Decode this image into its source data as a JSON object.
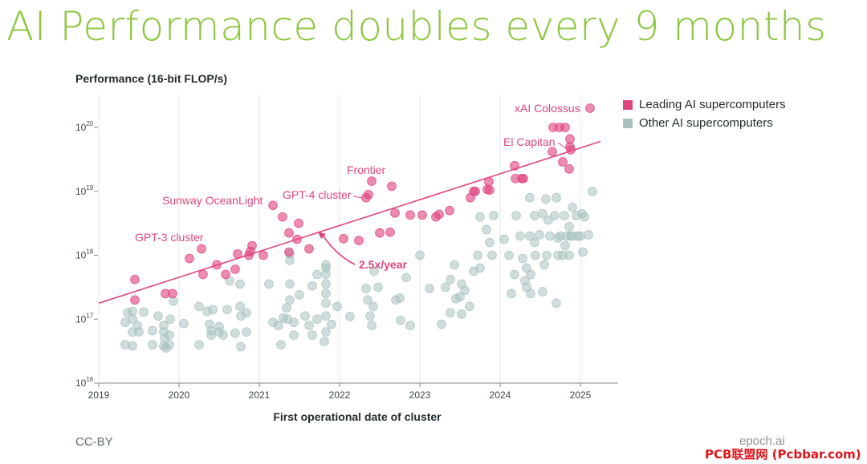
{
  "header": {
    "title": "AI Performance doubles every 9 months"
  },
  "footer": {
    "license": "CC-BY",
    "brand": "epoch.ai"
  },
  "watermark": "PCB联盟网 (Pcbbar.com)",
  "colors": {
    "title": "#8dc63f",
    "leading": "#e0457f",
    "other": "#a8c2c0",
    "trend": "#e0457f"
  },
  "chart_data": {
    "type": "scatter",
    "title": "AI Performance doubles every 9 months",
    "ylabel": "Performance (16-bit FLOP/s)",
    "xlabel": "First operational date of cluster",
    "y_scale": "log",
    "xlim": [
      2019.0,
      2025.45
    ],
    "ylim_exp": [
      16,
      20.55
    ],
    "x_ticks": [
      "2019",
      "2020",
      "2021",
      "2022",
      "2023",
      "2024",
      "2025"
    ],
    "y_ticks": [
      {
        "exp": 16,
        "base": "10",
        "sup": "16"
      },
      {
        "exp": 17,
        "base": "10",
        "sup": "17"
      },
      {
        "exp": 18,
        "base": "10",
        "sup": "18"
      },
      {
        "exp": 19,
        "base": "10",
        "sup": "19"
      },
      {
        "exp": 20,
        "base": "10",
        "sup": "20"
      }
    ],
    "legend": [
      {
        "name": "Leading AI supercomputers",
        "color": "#e0457f"
      },
      {
        "name": "Other AI supercomputers",
        "color": "#a8c2c0"
      }
    ],
    "trend": {
      "label": "2.5x/year",
      "x_start": 2019.0,
      "log_y_start": 17.25,
      "x_end": 2025.25,
      "log_y_end": 19.78
    },
    "annotations": [
      {
        "text": "GPT-3 cluster",
        "x": 2020.1,
        "log_y": 18.3
      },
      {
        "text": "Sunway OceanLight",
        "x": 2021.1,
        "log_y": 19.1
      },
      {
        "text": "GPT-4 cluster",
        "x": 2022.2,
        "log_y": 19.2
      },
      {
        "text": "Frontier",
        "x": 2022.35,
        "log_y": 19.35
      },
      {
        "text": "El Capitan",
        "x": 2024.6,
        "log_y": 19.75
      },
      {
        "text": "xAI Colossus",
        "x": 2024.9,
        "log_y": 20.3
      }
    ],
    "series": [
      {
        "name": "Leading AI supercomputers",
        "color": "#e0457f",
        "points": [
          [
            2019.45,
            17.3
          ],
          [
            2019.45,
            17.62
          ],
          [
            2019.83,
            17.4
          ],
          [
            2019.92,
            17.4
          ],
          [
            2020.13,
            17.95
          ],
          [
            2020.28,
            18.1
          ],
          [
            2020.3,
            17.7
          ],
          [
            2020.47,
            17.85
          ],
          [
            2020.58,
            17.7
          ],
          [
            2020.7,
            17.78
          ],
          [
            2020.73,
            18.02
          ],
          [
            2020.87,
            18.0
          ],
          [
            2020.89,
            18.06
          ],
          [
            2020.91,
            18.15
          ],
          [
            2021.05,
            18.0
          ],
          [
            2021.17,
            18.78
          ],
          [
            2021.29,
            18.6
          ],
          [
            2021.37,
            18.05
          ],
          [
            2021.37,
            18.35
          ],
          [
            2021.47,
            18.25
          ],
          [
            2021.49,
            18.5
          ],
          [
            2021.62,
            18.1
          ],
          [
            2022.05,
            18.26
          ],
          [
            2022.24,
            18.23
          ],
          [
            2022.33,
            18.9
          ],
          [
            2022.36,
            18.95
          ],
          [
            2022.4,
            19.16
          ],
          [
            2022.5,
            18.35
          ],
          [
            2022.63,
            18.36
          ],
          [
            2022.65,
            19.08
          ],
          [
            2022.69,
            18.66
          ],
          [
            2022.88,
            18.63
          ],
          [
            2023.03,
            18.63
          ],
          [
            2023.2,
            18.6
          ],
          [
            2023.24,
            18.64
          ],
          [
            2023.37,
            18.7
          ],
          [
            2023.63,
            18.9
          ],
          [
            2023.67,
            19.0
          ],
          [
            2023.69,
            19.0
          ],
          [
            2023.84,
            19.03
          ],
          [
            2023.86,
            19.15
          ],
          [
            2023.87,
            19.02
          ],
          [
            2024.18,
            19.4
          ],
          [
            2024.19,
            19.2
          ],
          [
            2024.27,
            19.2
          ],
          [
            2024.29,
            19.2
          ],
          [
            2024.65,
            19.62
          ],
          [
            2024.66,
            20.0
          ],
          [
            2024.74,
            20.0
          ],
          [
            2024.78,
            19.46
          ],
          [
            2024.81,
            20.0
          ],
          [
            2024.86,
            19.35
          ],
          [
            2024.87,
            19.7
          ],
          [
            2024.87,
            19.82
          ],
          [
            2024.88,
            19.65
          ],
          [
            2025.12,
            20.3
          ]
        ]
      },
      {
        "name": "Other AI supercomputers",
        "color": "#a8c2c0",
        "points": [
          [
            2019.33,
            16.6
          ],
          [
            2019.33,
            16.95
          ],
          [
            2019.36,
            17.1
          ],
          [
            2019.42,
            16.58
          ],
          [
            2019.42,
            16.8
          ],
          [
            2019.42,
            17.0
          ],
          [
            2019.42,
            17.12
          ],
          [
            2019.48,
            16.9
          ],
          [
            2019.5,
            16.8
          ],
          [
            2019.56,
            17.11
          ],
          [
            2019.67,
            16.82
          ],
          [
            2019.67,
            16.6
          ],
          [
            2019.74,
            17.05
          ],
          [
            2019.81,
            16.58
          ],
          [
            2019.81,
            16.8
          ],
          [
            2019.81,
            16.9
          ],
          [
            2019.82,
            16.7
          ],
          [
            2019.84,
            16.55
          ],
          [
            2019.88,
            16.6
          ],
          [
            2019.88,
            16.75
          ],
          [
            2019.89,
            17.0
          ],
          [
            2019.93,
            17.28
          ],
          [
            2020.06,
            16.93
          ],
          [
            2020.25,
            17.2
          ],
          [
            2020.25,
            16.6
          ],
          [
            2020.35,
            17.12
          ],
          [
            2020.38,
            16.92
          ],
          [
            2020.4,
            16.82
          ],
          [
            2020.4,
            16.75
          ],
          [
            2020.42,
            17.15
          ],
          [
            2020.5,
            16.88
          ],
          [
            2020.5,
            16.8
          ],
          [
            2020.55,
            16.75
          ],
          [
            2020.6,
            17.15
          ],
          [
            2020.63,
            17.6
          ],
          [
            2020.7,
            16.78
          ],
          [
            2020.76,
            17.2
          ],
          [
            2020.77,
            17.05
          ],
          [
            2020.77,
            16.57
          ],
          [
            2020.76,
            17.55
          ],
          [
            2020.84,
            17.1
          ],
          [
            2020.84,
            16.8
          ],
          [
            2021.12,
            17.55
          ],
          [
            2021.17,
            16.95
          ],
          [
            2021.24,
            16.9
          ],
          [
            2021.27,
            16.6
          ],
          [
            2021.3,
            17.02
          ],
          [
            2021.34,
            17.18
          ],
          [
            2021.35,
            17.0
          ],
          [
            2021.38,
            17.3
          ],
          [
            2021.38,
            17.55
          ],
          [
            2021.38,
            17.92
          ],
          [
            2021.38,
            18.02
          ],
          [
            2021.43,
            16.95
          ],
          [
            2021.43,
            16.75
          ],
          [
            2021.5,
            17.38
          ],
          [
            2021.57,
            17.05
          ],
          [
            2021.62,
            16.9
          ],
          [
            2021.66,
            16.75
          ],
          [
            2021.66,
            17.52
          ],
          [
            2021.72,
            17.7
          ],
          [
            2021.72,
            17.0
          ],
          [
            2021.81,
            16.65
          ],
          [
            2021.83,
            16.8
          ],
          [
            2021.83,
            17.05
          ],
          [
            2021.83,
            17.25
          ],
          [
            2021.83,
            17.4
          ],
          [
            2021.83,
            17.55
          ],
          [
            2021.83,
            17.7
          ],
          [
            2021.83,
            17.8
          ],
          [
            2021.83,
            17.85
          ],
          [
            2021.9,
            16.92
          ],
          [
            2021.97,
            17.2
          ],
          [
            2022.13,
            17.04
          ],
          [
            2022.33,
            17.48
          ],
          [
            2022.35,
            17.3
          ],
          [
            2022.38,
            17.05
          ],
          [
            2022.4,
            16.9
          ],
          [
            2022.42,
            17.2
          ],
          [
            2022.43,
            17.75
          ],
          [
            2022.48,
            17.5
          ],
          [
            2022.7,
            17.3
          ],
          [
            2022.75,
            17.33
          ],
          [
            2022.76,
            16.98
          ],
          [
            2022.83,
            17.65
          ],
          [
            2022.88,
            16.9
          ],
          [
            2023.0,
            18.0
          ],
          [
            2023.12,
            17.48
          ],
          [
            2023.27,
            16.92
          ],
          [
            2023.32,
            17.5
          ],
          [
            2023.38,
            17.62
          ],
          [
            2023.38,
            17.1
          ],
          [
            2023.43,
            17.85
          ],
          [
            2023.45,
            17.32
          ],
          [
            2023.5,
            17.35
          ],
          [
            2023.52,
            17.55
          ],
          [
            2023.52,
            17.08
          ],
          [
            2023.56,
            17.45
          ],
          [
            2023.62,
            17.2
          ],
          [
            2023.67,
            17.75
          ],
          [
            2023.72,
            18.0
          ],
          [
            2023.75,
            18.6
          ],
          [
            2023.75,
            17.8
          ],
          [
            2023.83,
            18.4
          ],
          [
            2023.87,
            18.2
          ],
          [
            2023.9,
            18.0
          ],
          [
            2023.92,
            18.62
          ],
          [
            2024.05,
            18.25
          ],
          [
            2024.11,
            18.0
          ],
          [
            2024.14,
            17.4
          ],
          [
            2024.18,
            17.7
          ],
          [
            2024.2,
            18.62
          ],
          [
            2024.25,
            18.3
          ],
          [
            2024.28,
            17.95
          ],
          [
            2024.31,
            17.6
          ],
          [
            2024.33,
            17.5
          ],
          [
            2024.33,
            17.8
          ],
          [
            2024.37,
            18.3
          ],
          [
            2024.37,
            18.9
          ],
          [
            2024.38,
            17.7
          ],
          [
            2024.38,
            17.4
          ],
          [
            2024.43,
            18.2
          ],
          [
            2024.43,
            18.62
          ],
          [
            2024.44,
            18.0
          ],
          [
            2024.49,
            18.32
          ],
          [
            2024.53,
            17.43
          ],
          [
            2024.53,
            18.65
          ],
          [
            2024.55,
            17.85
          ],
          [
            2024.57,
            18.88
          ],
          [
            2024.58,
            18.0
          ],
          [
            2024.6,
            18.55
          ],
          [
            2024.62,
            18.3
          ],
          [
            2024.68,
            18.62
          ],
          [
            2024.7,
            18.9
          ],
          [
            2024.72,
            18.27
          ],
          [
            2024.72,
            18.0
          ],
          [
            2024.75,
            18.3
          ],
          [
            2024.78,
            18.0
          ],
          [
            2024.8,
            18.62
          ],
          [
            2024.81,
            18.15
          ],
          [
            2024.83,
            18.3
          ],
          [
            2024.86,
            18.0
          ],
          [
            2024.86,
            18.45
          ],
          [
            2024.88,
            18.3
          ],
          [
            2024.9,
            18.75
          ],
          [
            2024.9,
            18.3
          ],
          [
            2024.95,
            18.62
          ],
          [
            2024.97,
            18.3
          ],
          [
            2025.0,
            18.3
          ],
          [
            2025.02,
            18.65
          ],
          [
            2025.03,
            18.05
          ],
          [
            2025.05,
            18.6
          ],
          [
            2025.1,
            18.32
          ],
          [
            2025.15,
            19.0
          ],
          [
            2024.7,
            17.25
          ]
        ]
      }
    ]
  }
}
